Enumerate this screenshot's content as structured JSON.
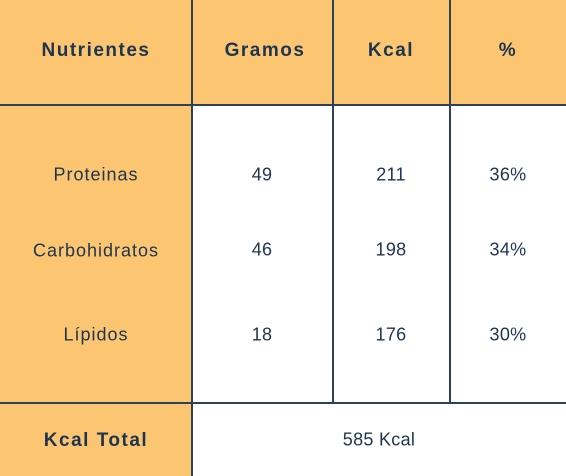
{
  "header": {
    "nutrients": "Nutrientes",
    "grams": "Gramos",
    "kcal": "Kcal",
    "percent": "%"
  },
  "rows": [
    {
      "name": "Proteinas",
      "grams": "49",
      "kcal": "211",
      "percent": "36%"
    },
    {
      "name": "Carbohidratos",
      "grams": "46",
      "kcal": "198",
      "percent": "34%"
    },
    {
      "name": "Lípidos",
      "grams": "18",
      "kcal": "176",
      "percent": "30%"
    }
  ],
  "footer": {
    "label": "Kcal Total",
    "value": "585 Kcal"
  },
  "colors": {
    "header_bg": "#fbc572",
    "body_bg": "#ffffff",
    "text": "#1e3550",
    "grid": "#2e4257"
  }
}
